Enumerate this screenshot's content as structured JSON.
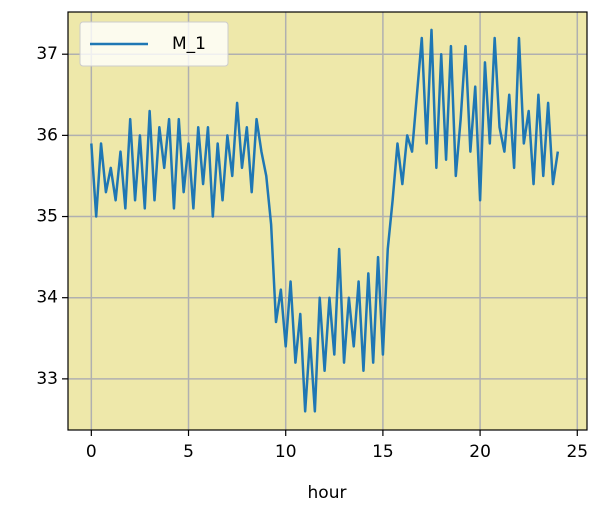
{
  "chart_data": {
    "type": "line",
    "x_label": "hour",
    "x": [
      0,
      0.25,
      0.5,
      0.75,
      1,
      1.25,
      1.5,
      1.75,
      2,
      2.25,
      2.5,
      2.75,
      3,
      3.25,
      3.5,
      3.75,
      4,
      4.25,
      4.5,
      4.75,
      5,
      5.25,
      5.5,
      5.75,
      6,
      6.25,
      6.5,
      6.75,
      7,
      7.25,
      7.5,
      7.75,
      8,
      8.25,
      8.5,
      8.75,
      9,
      9.25,
      9.5,
      9.75,
      10,
      10.25,
      10.5,
      10.75,
      11,
      11.25,
      11.5,
      11.75,
      12,
      12.25,
      12.5,
      12.75,
      13,
      13.25,
      13.5,
      13.75,
      14,
      14.25,
      14.5,
      14.75,
      15,
      15.25,
      15.5,
      15.75,
      16,
      16.25,
      16.5,
      16.75,
      17,
      17.25,
      17.5,
      17.75,
      18,
      18.25,
      18.5,
      18.75,
      19,
      19.25,
      19.5,
      19.75,
      20,
      20.25,
      20.5,
      20.75,
      21,
      21.25,
      21.5,
      21.75,
      22,
      22.25,
      22.5,
      22.75,
      23,
      23.25,
      23.5,
      23.75,
      24
    ],
    "series": [
      {
        "name": "M_1",
        "color": "#1f77b4",
        "values": [
          35.9,
          35.0,
          35.9,
          35.3,
          35.6,
          35.2,
          35.8,
          35.1,
          36.2,
          35.2,
          36.0,
          35.1,
          36.3,
          35.2,
          36.1,
          35.6,
          36.2,
          35.1,
          36.2,
          35.3,
          35.9,
          35.1,
          36.1,
          35.4,
          36.1,
          35.0,
          35.9,
          35.2,
          36.0,
          35.5,
          36.4,
          35.6,
          36.1,
          35.3,
          36.2,
          35.8,
          35.5,
          34.9,
          33.7,
          34.1,
          33.4,
          34.2,
          33.2,
          33.8,
          32.6,
          33.5,
          32.6,
          34.0,
          33.1,
          34.0,
          33.3,
          34.6,
          33.2,
          34.0,
          33.4,
          34.2,
          33.1,
          34.3,
          33.2,
          34.5,
          33.3,
          34.6,
          35.2,
          35.9,
          35.4,
          36.0,
          35.8,
          36.5,
          37.2,
          35.9,
          37.3,
          35.6,
          37.0,
          35.7,
          37.1,
          35.5,
          36.2,
          37.1,
          35.8,
          36.6,
          35.2,
          36.9,
          35.9,
          37.2,
          36.1,
          35.8,
          36.5,
          35.6,
          37.2,
          35.9,
          36.3,
          35.4,
          36.5,
          35.5,
          36.4,
          35.4,
          35.8
        ]
      }
    ],
    "xlim": [
      -1.2,
      25.5
    ],
    "ylim": [
      32.37,
      37.52
    ],
    "xticks": [
      0,
      5,
      10,
      15,
      20,
      25
    ],
    "yticks": [
      33,
      34,
      35,
      36,
      37
    ],
    "grid": true,
    "legend": "upper left",
    "background": "#eee8aa"
  }
}
